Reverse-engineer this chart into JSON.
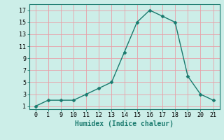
{
  "x_indices": [
    0,
    1,
    2,
    3,
    4,
    5,
    6,
    7,
    8,
    9,
    10,
    11,
    12,
    13,
    14
  ],
  "x_labels": [
    "0",
    "1",
    "9",
    "10",
    "11",
    "12",
    "13",
    "14",
    "15",
    "16",
    "17",
    "18",
    "19",
    "20",
    "21"
  ],
  "y": [
    1,
    2,
    2,
    2,
    3,
    4,
    5,
    10,
    15,
    17,
    16,
    15,
    6,
    3,
    2
  ],
  "line_color": "#1a7a6e",
  "bg_color": "#cceee8",
  "grid_color_h": "#e8a0a8",
  "grid_color_v": "#e8a0a8",
  "xlabel": "Humidex (Indice chaleur)",
  "yticks": [
    1,
    3,
    5,
    7,
    9,
    11,
    13,
    15,
    17
  ],
  "xlim": [
    -0.5,
    14.5
  ],
  "ylim": [
    0.5,
    18
  ]
}
